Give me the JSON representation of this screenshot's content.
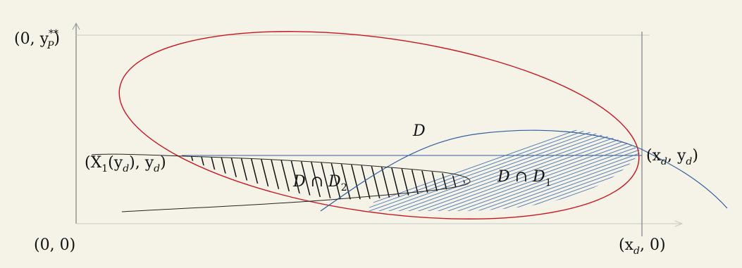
{
  "colors": {
    "background": "#f5f3e7",
    "axis": "#9a9a9a",
    "ellipse": "#c8141e",
    "curve_blue": "#2f5e9e",
    "hatch_blue": "#4a76b4",
    "hatch_black": "#111111"
  },
  "labels": {
    "y_axis_top": "(0, y",
    "y_axis_top_sup": "**",
    "y_axis_top_sub": "P",
    "y_axis_top_close": ")",
    "origin": "(0, 0)",
    "x_axis_point": "(x",
    "x_axis_point_sub": "d",
    "x_axis_point_close": ", 0)",
    "point_left": "(X",
    "point_left_sub1": "1",
    "point_left_mid": "(y",
    "point_left_sub2": "d",
    "point_left_close": "), y",
    "point_left_sub3": "d",
    "point_left_end": ")",
    "point_right": "(x",
    "point_right_sub1": "d",
    "point_right_mid": ", y",
    "point_right_sub2": "d",
    "point_right_end": ")",
    "region_D": "D",
    "region_D_D1": "D ∩ D",
    "region_D_D1_sub": "1",
    "region_D_D2": "D ∩ D",
    "region_D_D2_sub": "2"
  }
}
